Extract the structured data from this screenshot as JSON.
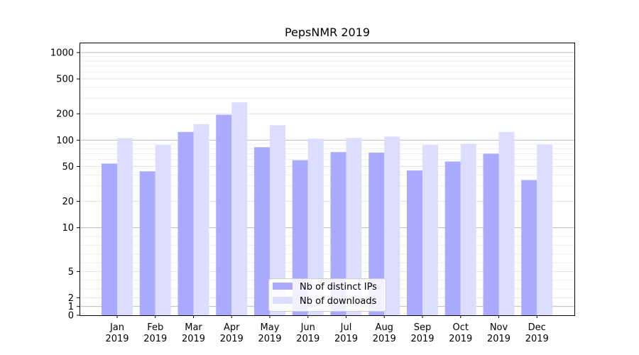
{
  "chart_data": {
    "type": "bar",
    "title": "PepsNMR 2019",
    "xlabel": "",
    "ylabel": "",
    "y_scale": "symlog",
    "ylim": [
      0,
      1300
    ],
    "y_ticks": [
      0,
      1,
      2,
      5,
      10,
      20,
      50,
      100,
      200,
      500,
      1000
    ],
    "grid": "horizontal",
    "legend_position": "lower center",
    "categories": [
      {
        "month": "Jan",
        "year": "2019"
      },
      {
        "month": "Feb",
        "year": "2019"
      },
      {
        "month": "Mar",
        "year": "2019"
      },
      {
        "month": "Apr",
        "year": "2019"
      },
      {
        "month": "May",
        "year": "2019"
      },
      {
        "month": "Jun",
        "year": "2019"
      },
      {
        "month": "Jul",
        "year": "2019"
      },
      {
        "month": "Aug",
        "year": "2019"
      },
      {
        "month": "Sep",
        "year": "2019"
      },
      {
        "month": "Oct",
        "year": "2019"
      },
      {
        "month": "Nov",
        "year": "2019"
      },
      {
        "month": "Dec",
        "year": "2019"
      }
    ],
    "series": [
      {
        "name": "Nb of distinct IPs",
        "color": "#aaaaff",
        "values": [
          54,
          44,
          124,
          195,
          83,
          59,
          73,
          72,
          45,
          57,
          70,
          35
        ]
      },
      {
        "name": "Nb of downloads",
        "color": "#ddddff",
        "values": [
          105,
          88,
          152,
          270,
          148,
          104,
          106,
          110,
          88,
          91,
          124,
          89
        ]
      }
    ]
  }
}
